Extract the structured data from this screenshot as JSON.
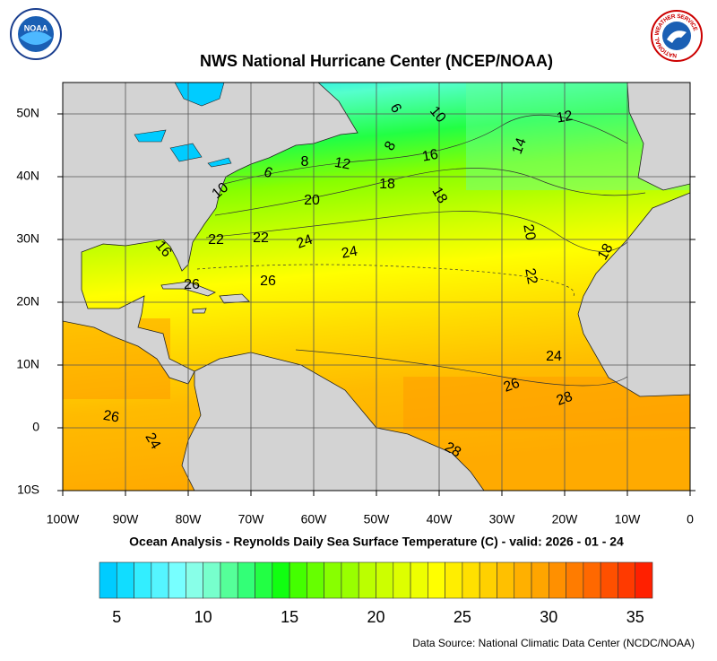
{
  "title": "NWS National Hurricane Center (NCEP/NOAA)",
  "subtitle": "Ocean Analysis - Reynolds Daily Sea Surface Temperature (C) - valid: 2026 - 01 - 24",
  "source": "Data Source: National Climatic Data Center (NCDC/NOAA)",
  "logos": {
    "noaa": "NOAA",
    "nws": "NATIONAL WEATHER SERVICE"
  },
  "longitude_labels": [
    "100W",
    "90W",
    "80W",
    "70W",
    "60W",
    "50W",
    "40W",
    "30W",
    "20W",
    "10W",
    "0"
  ],
  "latitude_labels": [
    "50N",
    "40N",
    "30N",
    "20N",
    "10N",
    "0",
    "10S"
  ],
  "contour_labels": [
    "6",
    "10",
    "12",
    "8",
    "14",
    "16",
    "6",
    "8",
    "12",
    "18",
    "10",
    "20",
    "18",
    "20",
    "22",
    "22",
    "24",
    "24",
    "16",
    "18",
    "22",
    "26",
    "26",
    "24",
    "26",
    "28",
    "26",
    "24",
    "28"
  ],
  "colorbar": {
    "labels": [
      "5",
      "10",
      "15",
      "20",
      "25",
      "30",
      "35"
    ],
    "colors": [
      "#00ccff",
      "#11ddff",
      "#33eeff",
      "#55f5ff",
      "#77ffff",
      "#88ffe8",
      "#77ffcc",
      "#55ff99",
      "#33ff77",
      "#22ff44",
      "#11ff11",
      "#44ff00",
      "#66ff00",
      "#88ff00",
      "#99ff00",
      "#bbff00",
      "#ccff00",
      "#ddff00",
      "#eeff00",
      "#ffff00",
      "#ffee00",
      "#ffe000",
      "#ffd000",
      "#ffc000",
      "#ffb000",
      "#ffa500",
      "#ff9000",
      "#ff7c00",
      "#ff6800",
      "#ff5000",
      "#ff3a00",
      "#ff2000"
    ]
  }
}
